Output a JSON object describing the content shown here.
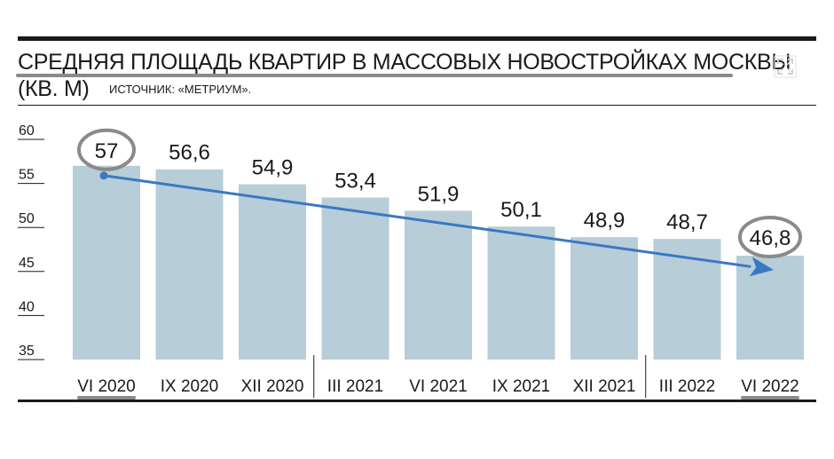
{
  "title": "СРЕДНЯЯ ПЛОЩАДЬ КВАРТИР В МАССОВЫХ НОВОСТРОЙКАХ МОСКВЫ",
  "unit": "(КВ. М)",
  "source": "ИСТОЧНИК: «МЕТРИУМ».",
  "colors": {
    "bar": "#b7cdd8",
    "arrow": "#3a78c2",
    "highlight": "#8a8a8a",
    "text": "#1a1a1a"
  },
  "icons": {
    "corner": "expand-icon"
  },
  "chart_data": {
    "type": "bar",
    "categories": [
      "VI 2020",
      "IX 2020",
      "XII 2020",
      "III 2021",
      "VI 2021",
      "IX 2021",
      "XII 2021",
      "III 2022",
      "VI 2022"
    ],
    "values": [
      57,
      56.6,
      54.9,
      53.4,
      51.9,
      50.1,
      48.9,
      48.7,
      46.8
    ],
    "value_labels": [
      "57",
      "56,6",
      "54,9",
      "53,4",
      "51,9",
      "50,1",
      "48,9",
      "48,7",
      "46,8"
    ],
    "ylim": [
      35,
      60
    ],
    "yticks": [
      60,
      55,
      50,
      45,
      40,
      35
    ],
    "ytick_labels": [
      "60",
      "55",
      "50",
      "45",
      "40",
      "35"
    ],
    "grid": false,
    "highlighted": [
      "VI 2020",
      "VI 2022"
    ],
    "trend_arrow": {
      "from": "VI 2020",
      "to": "VI 2022"
    }
  }
}
